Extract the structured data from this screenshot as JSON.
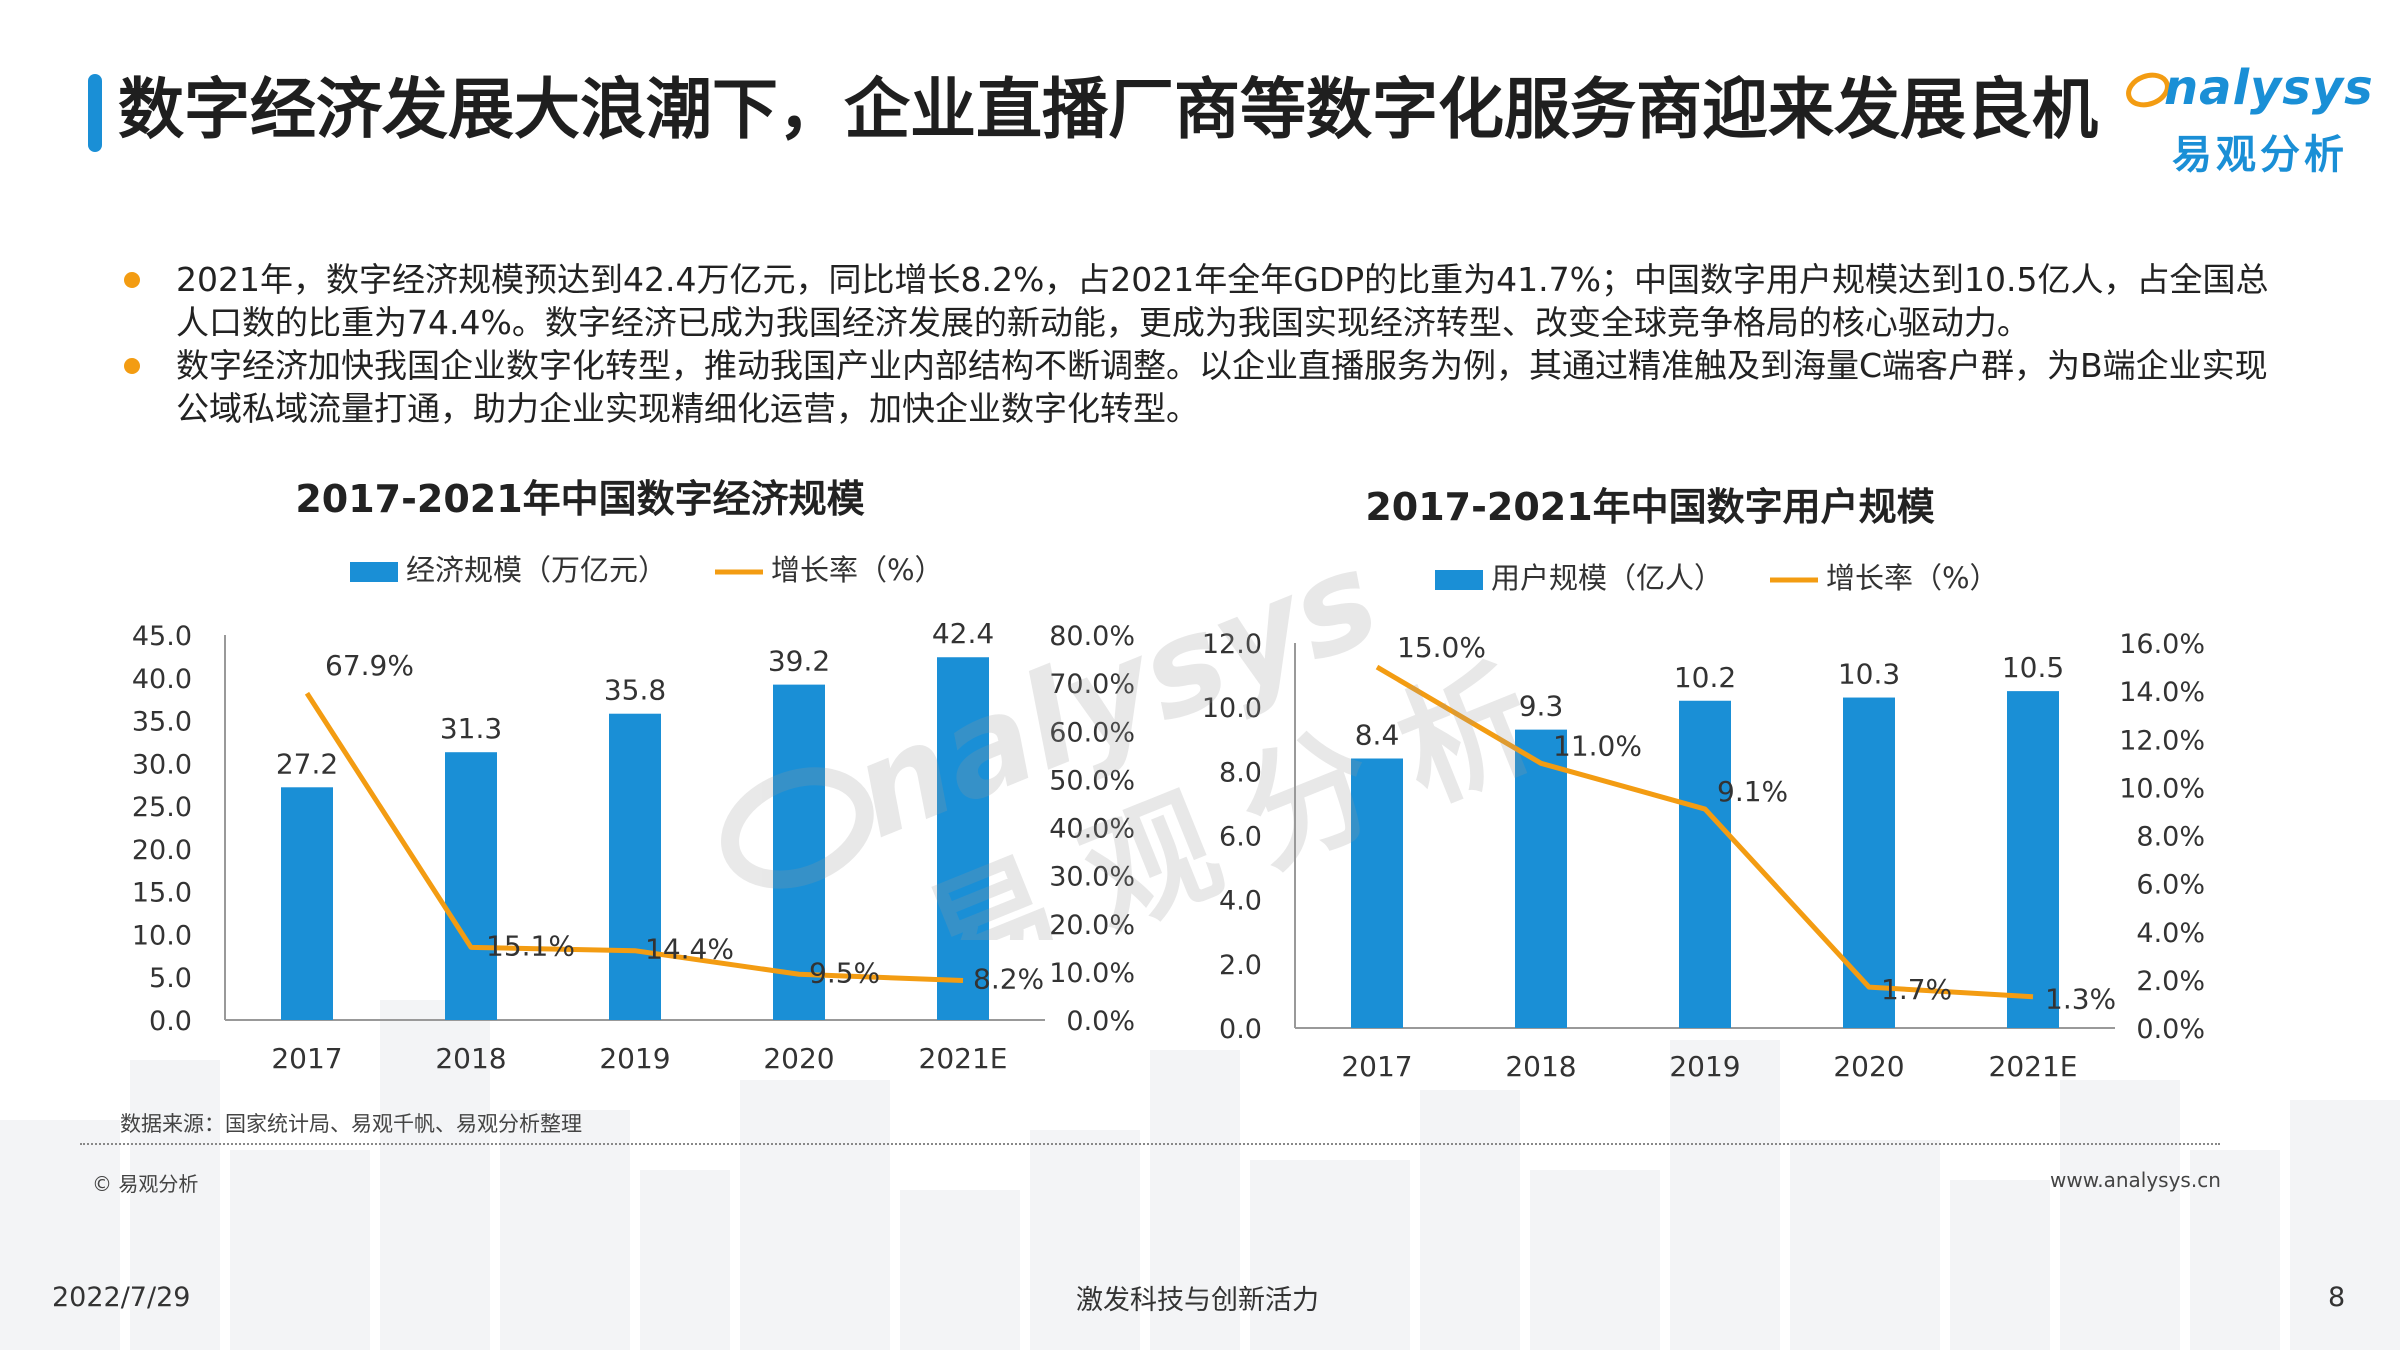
{
  "slide": {
    "title": "数字经济发展大浪潮下，企业直播厂商等数字化服务商迎来发展良机",
    "bullets": [
      "2021年，数字经济规模预达到42.4万亿元，同比增长8.2%，占2021年全年GDP的比重为41.7%；中国数字用户规模达到10.5亿人，占全国总人口数的比重为74.4%。数字经济已成为我国经济发展的新动能，更成为我国实现经济转型、改变全球竞争格局的核心驱动力。",
      "数字经济加快我国企业数字化转型，推动我国产业内部结构不断调整。以企业直播服务为例，其通过精准触及到海量C端客户群，为B端企业实现公域私域流量打通，助力企业实现精细化运营，加快企业数字化转型。"
    ],
    "source": "数据来源：国家统计局、易观千帆、易观分析整理",
    "copyright": "© 易观分析",
    "website": "www.analysys.cn",
    "date": "2022/7/29",
    "slogan": "激发科技与创新活力",
    "page_number": "8"
  },
  "logo": {
    "en": "nalysys",
    "cn": "易观分析",
    "watermark_en": "nalysys",
    "watermark_cn": "易观分析"
  },
  "colors": {
    "bar": "#1a8fd6",
    "line": "#f39c12",
    "accent_bullet": "#f39c12",
    "title_bar": "#1a8fd6"
  },
  "chart_data": [
    {
      "type": "bar",
      "title": "2017-2021年中国数字经济规模",
      "categories": [
        "2017",
        "2018",
        "2019",
        "2020",
        "2021E"
      ],
      "series": [
        {
          "name": "经济规模（万亿元）",
          "type": "bar",
          "values": [
            27.2,
            31.3,
            35.8,
            39.2,
            42.4
          ],
          "labels": [
            "27.2",
            "31.3",
            "35.8",
            "39.2",
            "42.4"
          ]
        },
        {
          "name": "增长率（%）",
          "type": "line",
          "axis": "right",
          "values": [
            67.9,
            15.1,
            14.4,
            9.5,
            8.2
          ],
          "labels": [
            "67.9%",
            "15.1%",
            "14.4%",
            "9.5%",
            "8.2%"
          ]
        }
      ],
      "ylim": [
        0,
        45
      ],
      "yticks": [
        "0.0",
        "5.0",
        "10.0",
        "15.0",
        "20.0",
        "25.0",
        "30.0",
        "35.0",
        "40.0",
        "45.0"
      ],
      "y2lim": [
        0,
        80
      ],
      "y2ticks": [
        "0.0%",
        "10.0%",
        "20.0%",
        "30.0%",
        "40.0%",
        "50.0%",
        "60.0%",
        "70.0%",
        "80.0%"
      ],
      "legend": "top",
      "grid": false
    },
    {
      "type": "bar",
      "title": "2017-2021年中国数字用户规模",
      "categories": [
        "2017",
        "2018",
        "2019",
        "2020",
        "2021E"
      ],
      "series": [
        {
          "name": "用户规模（亿人）",
          "type": "bar",
          "values": [
            8.4,
            9.3,
            10.2,
            10.3,
            10.5
          ],
          "labels": [
            "8.4",
            "9.3",
            "10.2",
            "10.3",
            "10.5"
          ]
        },
        {
          "name": "增长率（%）",
          "type": "line",
          "axis": "right",
          "values": [
            15.0,
            11.0,
            9.1,
            1.7,
            1.3
          ],
          "labels": [
            "15.0%",
            "11.0%",
            "9.1%",
            "1.7%",
            "1.3%"
          ]
        }
      ],
      "ylim": [
        0,
        12
      ],
      "yticks": [
        "0.0",
        "2.0",
        "4.0",
        "6.0",
        "8.0",
        "10.0",
        "12.0"
      ],
      "y2lim": [
        0,
        16
      ],
      "y2ticks": [
        "0.0%",
        "2.0%",
        "4.0%",
        "6.0%",
        "8.0%",
        "10.0%",
        "12.0%",
        "14.0%",
        "16.0%"
      ],
      "legend": "top",
      "grid": false
    }
  ]
}
